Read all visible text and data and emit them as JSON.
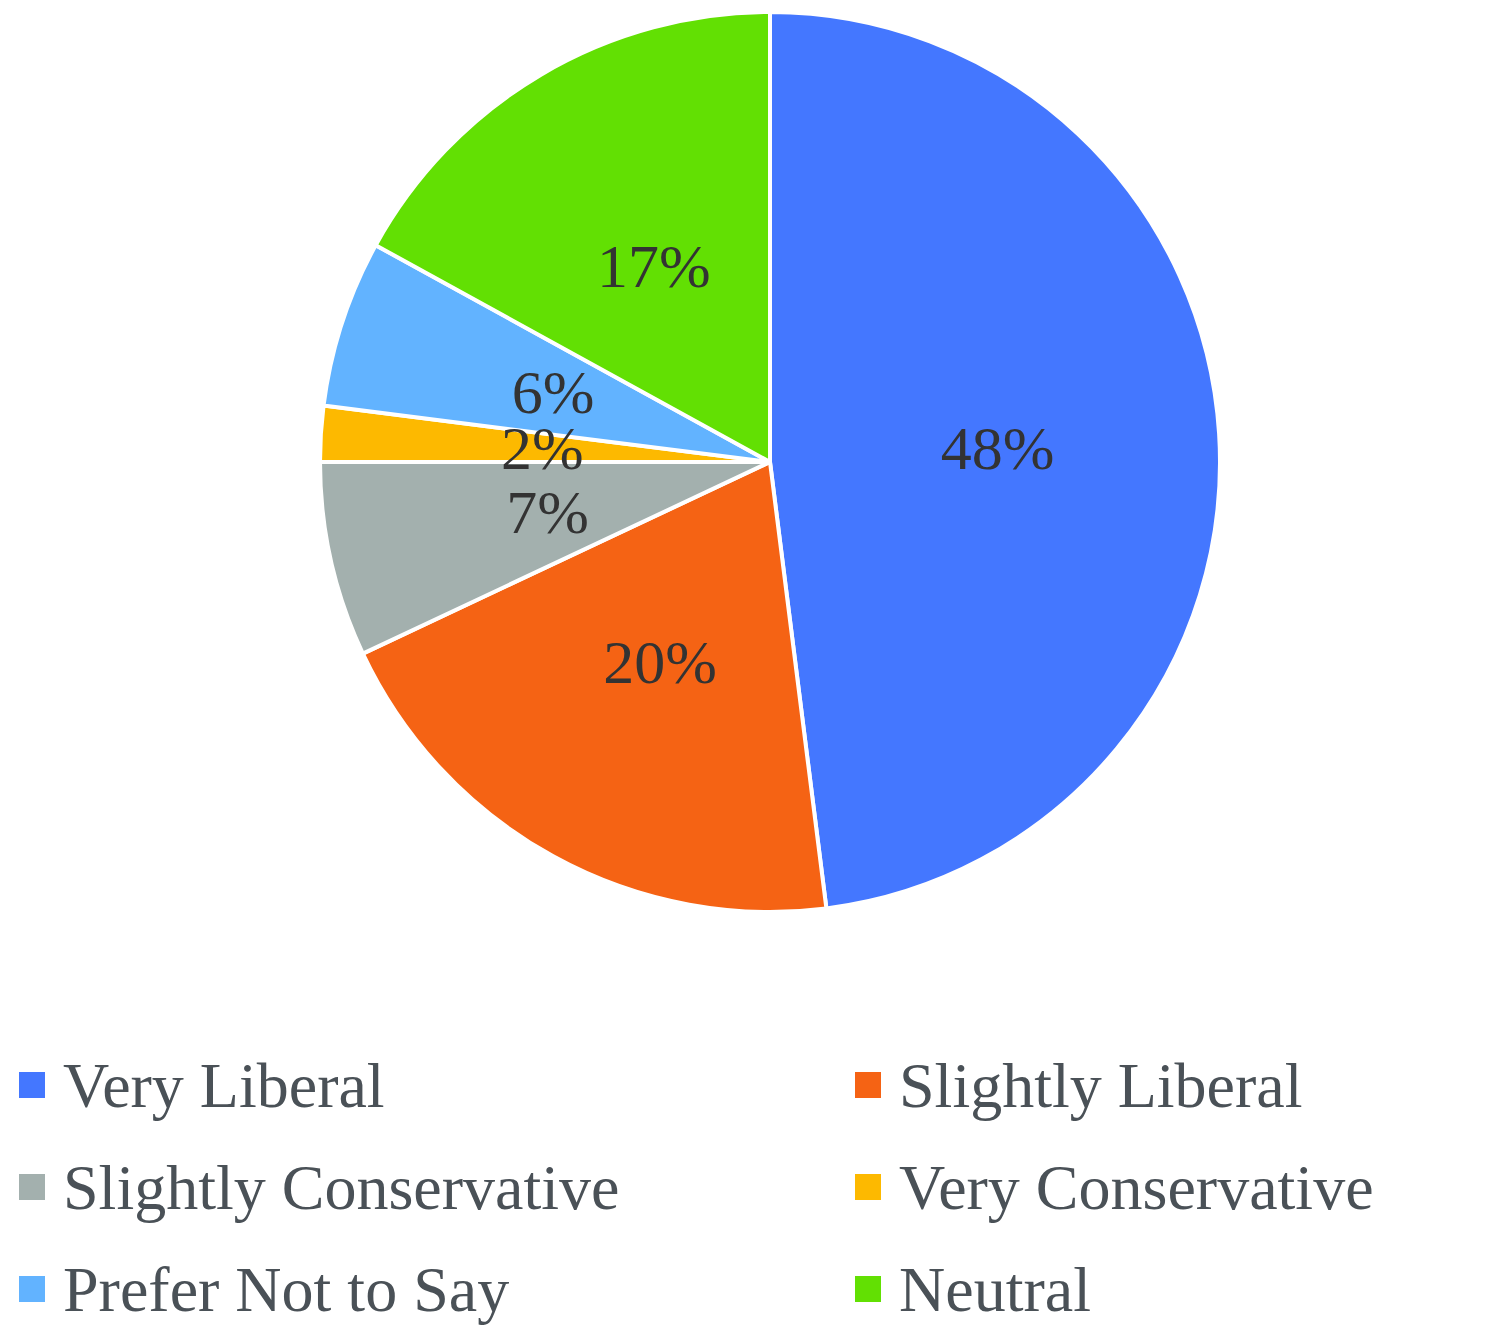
{
  "chart_data": {
    "type": "pie",
    "categories": [
      "Very Liberal",
      "Slightly Liberal",
      "Slightly Conservative",
      "Very Conservative",
      "Prefer Not to Say",
      "Neutral"
    ],
    "values": [
      48,
      20,
      7,
      2,
      6,
      17
    ],
    "value_labels": [
      "48%",
      "20%",
      "7%",
      "2%",
      "6%",
      "17%"
    ],
    "colors": [
      "#4477ff",
      "#f56314",
      "#a3b0ae",
      "#fdb900",
      "#62b3ff",
      "#62e003"
    ],
    "legend": "bottom"
  }
}
